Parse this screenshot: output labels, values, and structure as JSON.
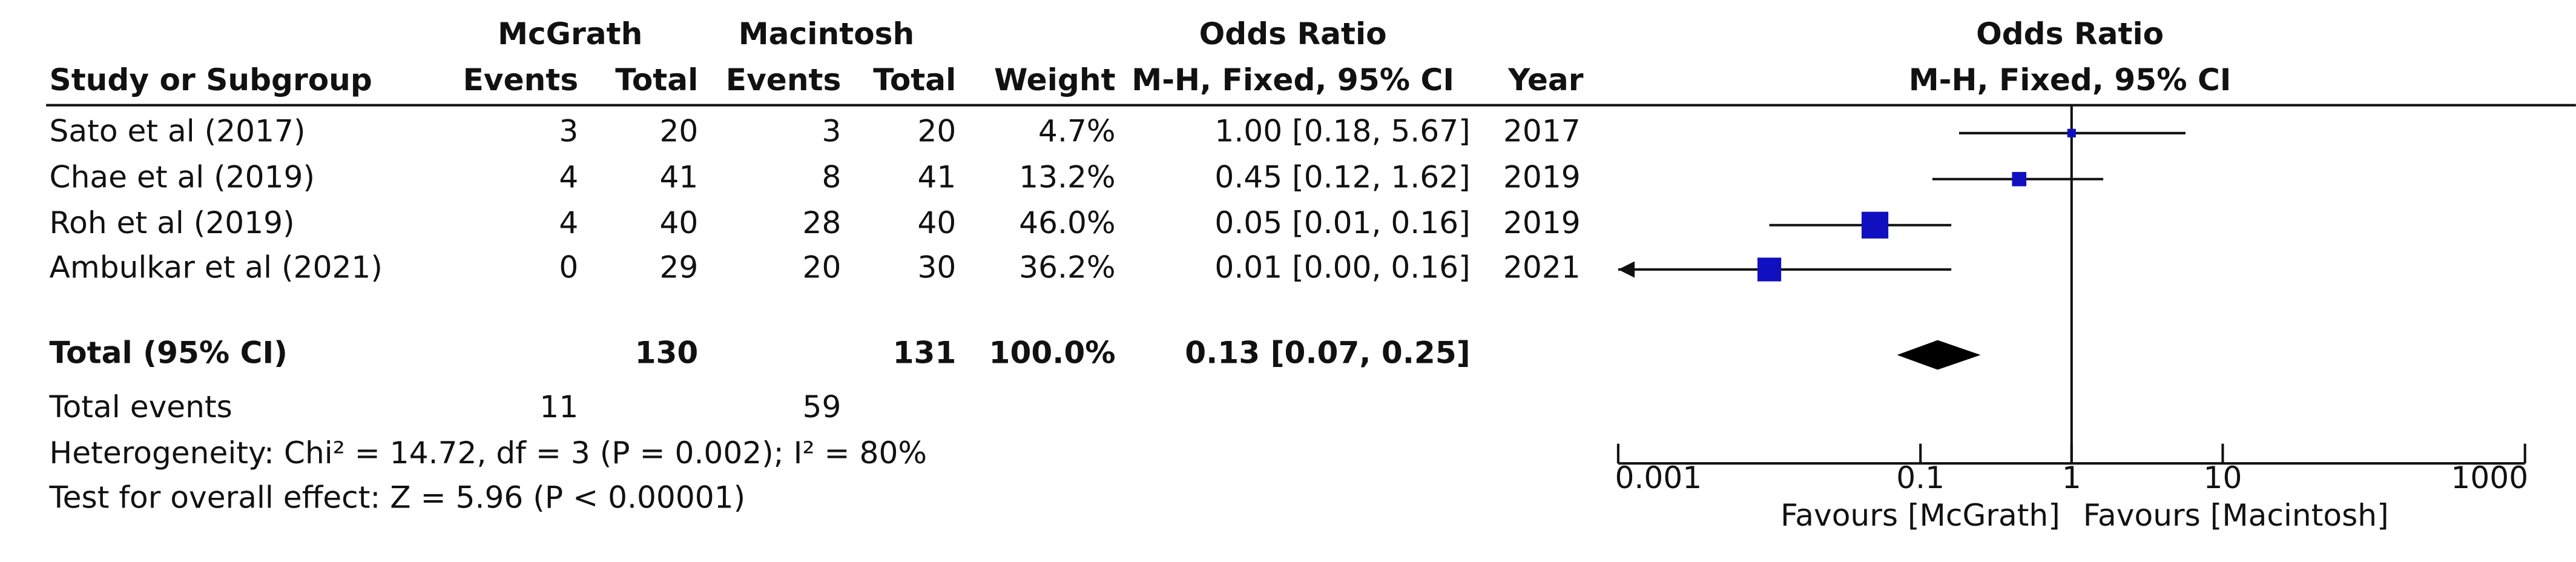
{
  "chart_data": {
    "type": "forest",
    "group_headers": {
      "experimental": "McGrath",
      "control": "Macintosh",
      "effect": "Odds Ratio"
    },
    "columns": {
      "study": "Study or Subgroup",
      "events1": "Events",
      "total1": "Total",
      "events2": "Events",
      "total2": "Total",
      "weight": "Weight",
      "ci": "M-H, Fixed, 95% CI",
      "year": "Year"
    },
    "plot_title": "Odds Ratio",
    "plot_subtitle": "M-H, Fixed, 95% CI",
    "studies": [
      {
        "name": "Sato et al (2017)",
        "events1": 3,
        "total1": 20,
        "events2": 3,
        "total2": 20,
        "weight": 4.7,
        "weight_label": "4.7%",
        "or": 1.0,
        "lower": 0.18,
        "upper": 5.67,
        "ci_label": "1.00 [0.18, 5.67]",
        "year": 2017
      },
      {
        "name": "Chae et al (2019)",
        "events1": 4,
        "total1": 41,
        "events2": 8,
        "total2": 41,
        "weight": 13.2,
        "weight_label": "13.2%",
        "or": 0.45,
        "lower": 0.12,
        "upper": 1.62,
        "ci_label": "0.45 [0.12, 1.62]",
        "year": 2019
      },
      {
        "name": "Roh et al (2019)",
        "events1": 4,
        "total1": 40,
        "events2": 28,
        "total2": 40,
        "weight": 46.0,
        "weight_label": "46.0%",
        "or": 0.05,
        "lower": 0.01,
        "upper": 0.16,
        "ci_label": "0.05 [0.01, 0.16]",
        "year": 2019
      },
      {
        "name": "Ambulkar et al (2021)",
        "events1": 0,
        "total1": 29,
        "events2": 20,
        "total2": 30,
        "weight": 36.2,
        "weight_label": "36.2%",
        "or": 0.01,
        "lower": 0.0,
        "upper": 0.16,
        "ci_label": "0.01 [0.00, 0.16]",
        "year": 2021
      }
    ],
    "total": {
      "name": "Total (95% CI)",
      "total1": 130,
      "total2": 131,
      "weight": 100,
      "weight_label": "100.0%",
      "or": 0.13,
      "lower": 0.07,
      "upper": 0.25,
      "ci_label": "0.13 [0.07, 0.25]"
    },
    "total_events": {
      "label": "Total events",
      "events1": 11,
      "events2": 59
    },
    "heterogeneity": "Heterogeneity: Chi² = 14.72, df = 3 (P = 0.002); I² = 80%",
    "overall_effect": "Test for overall effect: Z = 5.96 (P < 0.00001)",
    "xlim": [
      0.001,
      1000
    ],
    "xticks": [
      0.001,
      0.1,
      1,
      10,
      1000
    ],
    "log_x": true,
    "favours_left": "Favours [McGrath]",
    "favours_right": "Favours [Macintosh]",
    "color": "#1010c0"
  }
}
